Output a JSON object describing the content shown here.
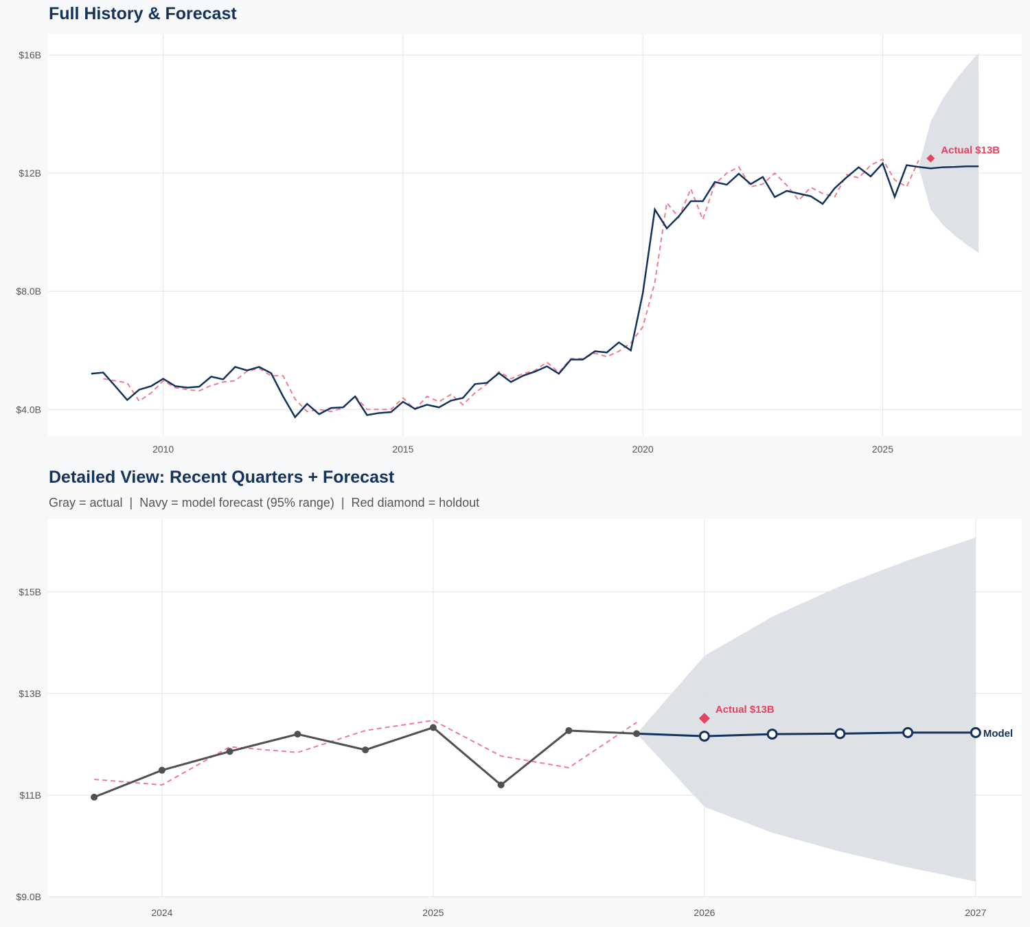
{
  "colors": {
    "navy": "#13325b",
    "red": "#e4435f",
    "fitted": "#ef7d90",
    "gray_actual": "#505050",
    "band": "#dce0e6",
    "grid": "#e3e3e3"
  },
  "chart_data": [
    {
      "type": "line",
      "title": "Full History & Forecast",
      "xlim": [
        2007.6,
        2027.9
      ],
      "ylim": [
        3.1,
        16.7
      ],
      "x_ticks": [
        2010,
        2015,
        2020,
        2025
      ],
      "x_tick_labels": [
        "2010",
        "2015",
        "2020",
        "2025"
      ],
      "y_ticks": [
        4,
        8,
        12,
        16
      ],
      "y_tick_labels": [
        "$4.0B",
        "$8.0B",
        "$12B",
        "$16B"
      ],
      "grid": true,
      "actual": {
        "x_start": 2008.5,
        "step": 0.25,
        "values": [
          5.21,
          5.25,
          4.79,
          4.32,
          4.67,
          4.79,
          5.04,
          4.79,
          4.74,
          4.77,
          5.11,
          5.02,
          5.44,
          5.32,
          5.44,
          5.23,
          4.44,
          3.74,
          4.19,
          3.84,
          4.05,
          4.07,
          4.44,
          3.81,
          3.88,
          3.91,
          4.26,
          4.02,
          4.16,
          4.07,
          4.3,
          4.39,
          4.86,
          4.9,
          5.23,
          4.93,
          5.14,
          5.28,
          5.46,
          5.21,
          5.69,
          5.69,
          5.97,
          5.93,
          6.27,
          6.0,
          7.94,
          10.77,
          10.13,
          10.54,
          11.05,
          11.05,
          11.7,
          11.61,
          11.98,
          11.63,
          11.87,
          11.19,
          11.4,
          11.31,
          11.22,
          10.96,
          11.49,
          11.86,
          12.2,
          11.89,
          12.33,
          11.2,
          12.27,
          12.21
        ]
      },
      "fitted": {
        "x_start": 2008.75,
        "step": 0.25,
        "values": [
          5.04,
          4.97,
          4.9,
          4.28,
          4.56,
          4.97,
          4.74,
          4.67,
          4.63,
          4.81,
          4.93,
          4.97,
          5.3,
          5.39,
          5.14,
          5.14,
          4.35,
          3.93,
          4.0,
          3.93,
          4.05,
          4.46,
          4.0,
          4.0,
          4.0,
          4.39,
          4.0,
          4.44,
          4.26,
          4.51,
          4.16,
          4.56,
          4.86,
          5.28,
          5.04,
          5.21,
          5.32,
          5.6,
          5.25,
          5.72,
          5.72,
          5.9,
          5.79,
          5.97,
          6.25,
          6.8,
          8.3,
          11.0,
          10.5,
          11.47,
          10.43,
          11.63,
          12.0,
          12.21,
          11.54,
          11.63,
          12.0,
          11.59,
          11.08,
          11.52,
          11.31,
          11.2,
          11.95,
          11.84,
          12.27,
          12.47,
          11.77,
          11.54,
          12.43
        ]
      },
      "forecast": {
        "x": [
          2025.75,
          2026.0,
          2026.25,
          2026.5,
          2026.75,
          2027.0
        ],
        "values": [
          12.21,
          12.16,
          12.2,
          12.21,
          12.23,
          12.23
        ],
        "lower": [
          12.21,
          10.77,
          10.26,
          9.89,
          9.58,
          9.3
        ],
        "upper": [
          12.21,
          13.74,
          14.51,
          15.11,
          15.62,
          16.07
        ]
      },
      "holdout": {
        "x": 2026.0,
        "value": 12.5,
        "label": "Actual $13B"
      }
    },
    {
      "type": "line",
      "title": "Detailed View: Recent Quarters + Forecast",
      "subtitle": "Gray = actual  |  Navy = model forecast (95% range)  |  Red diamond = holdout",
      "xlim": [
        2023.58,
        2027.17
      ],
      "ylim": [
        9.0,
        16.43
      ],
      "x_ticks": [
        2024,
        2025,
        2026,
        2027
      ],
      "x_tick_labels": [
        "2024",
        "2025",
        "2026",
        "2027"
      ],
      "y_ticks": [
        9,
        11,
        13,
        15
      ],
      "y_tick_labels": [
        "$9.0B",
        "$11B",
        "$13B",
        "$15B"
      ],
      "grid": true,
      "actual": {
        "x": [
          2023.75,
          2024.0,
          2024.25,
          2024.5,
          2024.75,
          2025.0,
          2025.25,
          2025.5,
          2025.75
        ],
        "values": [
          10.96,
          11.49,
          11.86,
          12.2,
          11.89,
          12.33,
          11.2,
          12.27,
          12.21
        ]
      },
      "fitted": {
        "x": [
          2023.75,
          2024.0,
          2024.25,
          2024.5,
          2024.75,
          2025.0,
          2025.25,
          2025.5,
          2025.75
        ],
        "values": [
          11.31,
          11.2,
          11.95,
          11.84,
          12.27,
          12.47,
          11.77,
          11.54,
          12.43
        ]
      },
      "forecast": {
        "x": [
          2025.75,
          2026.0,
          2026.25,
          2026.5,
          2026.75,
          2027.0
        ],
        "values": [
          12.21,
          12.16,
          12.2,
          12.21,
          12.23,
          12.23
        ],
        "lower": [
          12.21,
          10.77,
          10.26,
          9.89,
          9.58,
          9.3
        ],
        "upper": [
          12.21,
          13.74,
          14.51,
          15.11,
          15.62,
          16.07
        ],
        "label": "Model"
      },
      "holdout": {
        "x": 2026.0,
        "value": 12.51,
        "label": "Actual $13B"
      }
    }
  ]
}
